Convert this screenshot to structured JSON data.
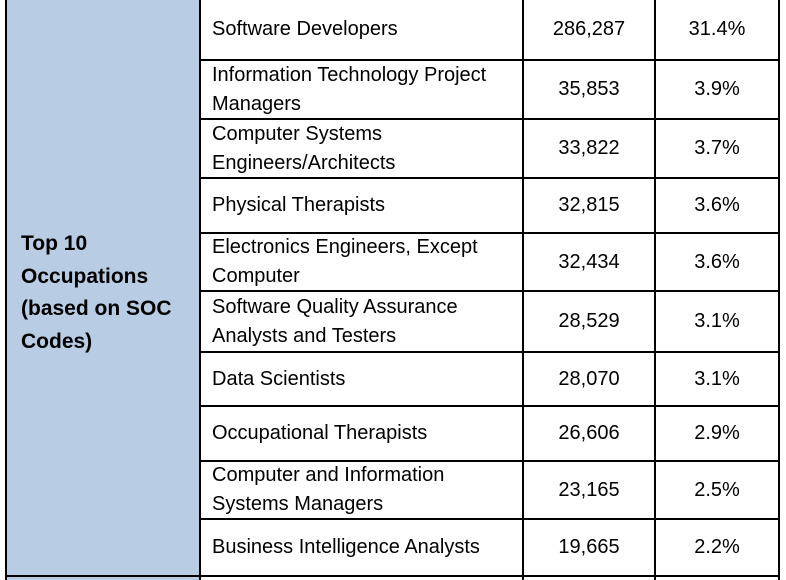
{
  "group_label": "Top 10 Occupations (based on SOC Codes)",
  "colors": {
    "label_bg": "#b8cce4",
    "border": "#000000"
  },
  "rows": [
    {
      "occupation": "Software Developers",
      "count": "286,287",
      "percent": "31.4%"
    },
    {
      "occupation": "Information Technology Project Managers",
      "count": "35,853",
      "percent": "3.9%"
    },
    {
      "occupation": "Computer Systems Engineers/Architects",
      "count": "33,822",
      "percent": "3.7%"
    },
    {
      "occupation": "Physical Therapists",
      "count": "32,815",
      "percent": "3.6%"
    },
    {
      "occupation": "Electronics Engineers, Except Computer",
      "count": "32,434",
      "percent": "3.6%"
    },
    {
      "occupation": "Software Quality Assurance Analysts and Testers",
      "count": "28,529",
      "percent": "3.1%"
    },
    {
      "occupation": "Data Scientists",
      "count": "28,070",
      "percent": "3.1%"
    },
    {
      "occupation": "Occupational Therapists",
      "count": "26,606",
      "percent": "2.9%"
    },
    {
      "occupation": "Computer and Information Systems Managers",
      "count": "23,165",
      "percent": "2.5%"
    },
    {
      "occupation": "Business Intelligence Analysts",
      "count": "19,665",
      "percent": "2.2%"
    }
  ]
}
